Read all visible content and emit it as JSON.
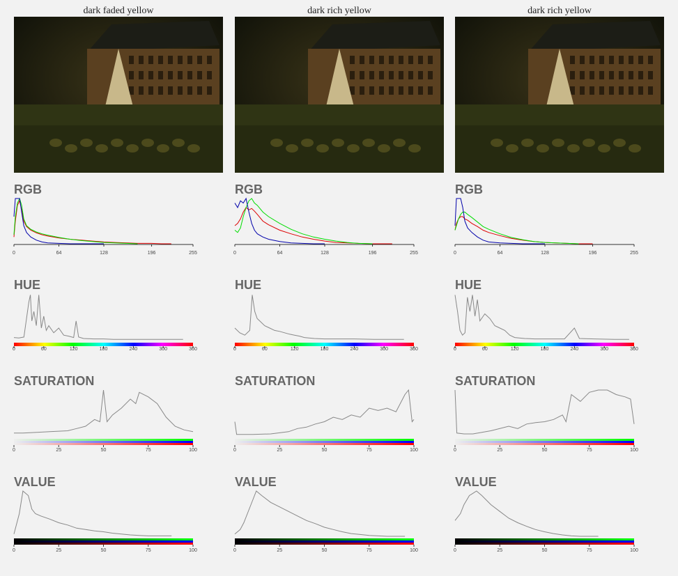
{
  "panels": [
    {
      "caption": "dark faded yellow"
    },
    {
      "caption": "dark rich yellow"
    },
    {
      "caption": "dark rich yellow"
    }
  ],
  "chart_data": [
    {
      "type": "line",
      "title": "RGB",
      "xlim": [
        0,
        255
      ],
      "xticks": [
        0,
        64,
        128,
        196,
        255
      ],
      "ylim": [
        0,
        100
      ],
      "x": [
        0,
        2,
        5,
        8,
        11,
        14,
        18,
        24,
        32,
        40,
        48,
        64,
        80,
        96,
        112,
        128,
        144,
        160,
        176,
        196,
        210,
        224
      ],
      "series": [
        {
          "color": "#dd0000",
          "values": [
            15,
            50,
            85,
            95,
            75,
            50,
            38,
            30,
            24,
            20,
            17,
            13,
            10,
            8,
            6,
            4,
            3,
            2,
            1,
            1,
            0,
            0
          ]
        },
        {
          "color": "#00dd00",
          "values": [
            20,
            60,
            90,
            100,
            85,
            55,
            40,
            32,
            26,
            22,
            19,
            14,
            10,
            7,
            5,
            3,
            2,
            1,
            0,
            null,
            null,
            null
          ]
        },
        {
          "color": "#0000aa",
          "values": [
            60,
            100,
            100,
            100,
            70,
            40,
            25,
            15,
            8,
            4,
            2,
            1,
            0,
            0,
            0,
            0,
            null,
            null,
            null,
            null,
            null,
            null
          ]
        }
      ]
    },
    {
      "type": "line",
      "title": "HUE",
      "xlim": [
        0,
        360
      ],
      "xticks": [
        0,
        60,
        120,
        180,
        240,
        300,
        360
      ],
      "ylim": [
        0,
        100
      ],
      "x": [
        0,
        10,
        20,
        30,
        33,
        36,
        40,
        45,
        50,
        55,
        60,
        65,
        70,
        80,
        90,
        100,
        110,
        120,
        125,
        130,
        140,
        160,
        180,
        200,
        240,
        300,
        340
      ],
      "series": [
        {
          "color": "#888888",
          "values": [
            5,
            4,
            6,
            80,
            95,
            40,
            60,
            30,
            95,
            25,
            50,
            20,
            30,
            15,
            25,
            10,
            8,
            5,
            40,
            6,
            3,
            2,
            2,
            1,
            1,
            1,
            1
          ]
        }
      ]
    },
    {
      "type": "line",
      "title": "SATURATION",
      "xlim": [
        0,
        100
      ],
      "xticks": [
        0,
        25,
        50,
        75,
        100
      ],
      "ylim": [
        0,
        100
      ],
      "x": [
        0,
        5,
        10,
        20,
        30,
        35,
        40,
        45,
        48,
        50,
        52,
        55,
        60,
        65,
        68,
        70,
        75,
        80,
        85,
        90,
        95,
        100
      ],
      "series": [
        {
          "color": "#888888",
          "values": [
            5,
            5,
            6,
            8,
            10,
            15,
            20,
            35,
            30,
            100,
            30,
            45,
            60,
            80,
            70,
            95,
            85,
            70,
            40,
            20,
            12,
            8
          ]
        }
      ]
    },
    {
      "type": "line",
      "title": "VALUE",
      "xlim": [
        0,
        100
      ],
      "xticks": [
        0,
        25,
        50,
        75,
        100
      ],
      "ylim": [
        0,
        100
      ],
      "x": [
        0,
        3,
        5,
        8,
        10,
        12,
        15,
        20,
        25,
        30,
        35,
        40,
        45,
        50,
        55,
        60,
        65,
        70,
        75,
        80,
        85,
        88
      ],
      "series": [
        {
          "color": "#888888",
          "values": [
            5,
            50,
            100,
            90,
            60,
            50,
            45,
            38,
            30,
            25,
            18,
            15,
            12,
            10,
            7,
            5,
            3,
            2,
            1,
            1,
            1,
            1
          ]
        }
      ]
    },
    {
      "type": "line",
      "title": "RGB",
      "xlim": [
        0,
        255
      ],
      "xticks": [
        0,
        64,
        128,
        196,
        255
      ],
      "ylim": [
        0,
        100
      ],
      "x": [
        0,
        4,
        8,
        12,
        16,
        20,
        24,
        28,
        32,
        40,
        48,
        64,
        80,
        96,
        112,
        128,
        144,
        160,
        176,
        196,
        224
      ],
      "series": [
        {
          "color": "#dd0000",
          "values": [
            40,
            45,
            55,
            70,
            80,
            75,
            78,
            72,
            65,
            50,
            42,
            30,
            22,
            15,
            10,
            6,
            3,
            2,
            1,
            0,
            0
          ]
        },
        {
          "color": "#00dd00",
          "values": [
            30,
            25,
            35,
            60,
            80,
            95,
            100,
            90,
            85,
            70,
            60,
            45,
            32,
            22,
            15,
            10,
            6,
            3,
            1,
            0,
            null
          ]
        },
        {
          "color": "#0000aa",
          "values": [
            90,
            80,
            95,
            90,
            100,
            70,
            45,
            30,
            22,
            15,
            10,
            5,
            2,
            1,
            0,
            0,
            null,
            null,
            null,
            null,
            null
          ]
        }
      ]
    },
    {
      "type": "line",
      "title": "HUE",
      "xlim": [
        0,
        360
      ],
      "xticks": [
        0,
        60,
        120,
        180,
        240,
        300,
        360
      ],
      "ylim": [
        0,
        100
      ],
      "x": [
        0,
        10,
        20,
        30,
        35,
        40,
        45,
        50,
        60,
        70,
        80,
        90,
        100,
        110,
        120,
        130,
        140,
        160,
        180,
        200,
        240,
        280,
        320,
        340
      ],
      "series": [
        {
          "color": "#888888",
          "values": [
            25,
            15,
            10,
            20,
            95,
            60,
            45,
            40,
            30,
            25,
            20,
            18,
            15,
            12,
            10,
            8,
            5,
            3,
            2,
            2,
            2,
            1,
            1,
            1
          ]
        }
      ]
    },
    {
      "type": "line",
      "title": "SATURATION",
      "xlim": [
        0,
        100
      ],
      "xticks": [
        0,
        25,
        50,
        75,
        100
      ],
      "ylim": [
        0,
        100
      ],
      "x": [
        0,
        1,
        5,
        10,
        20,
        30,
        35,
        40,
        45,
        50,
        55,
        60,
        65,
        70,
        75,
        80,
        85,
        90,
        95,
        97,
        99,
        100
      ],
      "series": [
        {
          "color": "#888888",
          "values": [
            30,
            2,
            2,
            2,
            3,
            8,
            15,
            18,
            25,
            30,
            40,
            35,
            45,
            40,
            60,
            55,
            60,
            52,
            90,
            100,
            30,
            35
          ]
        }
      ]
    },
    {
      "type": "line",
      "title": "VALUE",
      "xlim": [
        0,
        100
      ],
      "xticks": [
        0,
        25,
        50,
        75,
        100
      ],
      "ylim": [
        0,
        100
      ],
      "x": [
        0,
        3,
        5,
        8,
        10,
        12,
        15,
        20,
        25,
        30,
        35,
        40,
        45,
        50,
        55,
        60,
        65,
        70,
        75,
        80,
        85,
        95
      ],
      "series": [
        {
          "color": "#888888",
          "values": [
            5,
            15,
            30,
            60,
            80,
            100,
            90,
            75,
            65,
            55,
            45,
            35,
            28,
            20,
            15,
            10,
            6,
            4,
            2,
            1,
            0,
            0
          ]
        }
      ]
    },
    {
      "type": "line",
      "title": "RGB",
      "xlim": [
        0,
        255
      ],
      "xticks": [
        0,
        64,
        128,
        196,
        255
      ],
      "ylim": [
        0,
        100
      ],
      "x": [
        0,
        2,
        5,
        8,
        11,
        14,
        18,
        24,
        32,
        40,
        48,
        64,
        80,
        96,
        112,
        128,
        144,
        160,
        176,
        196,
        210,
        224
      ],
      "series": [
        {
          "color": "#dd0000",
          "values": [
            30,
            45,
            55,
            60,
            60,
            55,
            52,
            45,
            38,
            30,
            25,
            18,
            12,
            8,
            5,
            3,
            2,
            1,
            0,
            0,
            null,
            null
          ]
        },
        {
          "color": "#00dd00",
          "values": [
            30,
            40,
            55,
            65,
            70,
            70,
            65,
            58,
            48,
            38,
            32,
            22,
            14,
            9,
            5,
            3,
            2,
            1,
            0,
            null,
            null,
            null
          ]
        },
        {
          "color": "#0000aa",
          "values": [
            40,
            100,
            100,
            100,
            80,
            50,
            35,
            25,
            15,
            8,
            4,
            2,
            1,
            0,
            0,
            0,
            null,
            null,
            null,
            null,
            null,
            null
          ]
        }
      ]
    },
    {
      "type": "line",
      "title": "HUE",
      "xlim": [
        0,
        360
      ],
      "xticks": [
        0,
        60,
        120,
        180,
        240,
        300,
        360
      ],
      "ylim": [
        0,
        100
      ],
      "x": [
        0,
        5,
        10,
        15,
        20,
        25,
        30,
        35,
        40,
        45,
        50,
        60,
        70,
        80,
        90,
        100,
        110,
        120,
        140,
        160,
        200,
        220,
        240,
        250,
        280,
        320,
        350
      ],
      "series": [
        {
          "color": "#888888",
          "values": [
            95,
            60,
            20,
            10,
            15,
            90,
            60,
            95,
            50,
            85,
            40,
            55,
            45,
            30,
            25,
            20,
            10,
            5,
            3,
            2,
            2,
            2,
            25,
            3,
            2,
            1,
            1
          ]
        }
      ]
    },
    {
      "type": "line",
      "title": "SATURATION",
      "xlim": [
        0,
        100
      ],
      "xticks": [
        0,
        25,
        50,
        75,
        100
      ],
      "ylim": [
        0,
        100
      ],
      "x": [
        0,
        1,
        5,
        10,
        20,
        30,
        35,
        40,
        45,
        50,
        55,
        60,
        62,
        65,
        70,
        75,
        80,
        85,
        90,
        95,
        98,
        100
      ],
      "series": [
        {
          "color": "#888888",
          "values": [
            100,
            5,
            3,
            3,
            10,
            20,
            15,
            25,
            28,
            30,
            35,
            45,
            30,
            90,
            75,
            95,
            100,
            100,
            90,
            85,
            80,
            25
          ]
        }
      ]
    },
    {
      "type": "line",
      "title": "VALUE",
      "xlim": [
        0,
        100
      ],
      "xticks": [
        0,
        25,
        50,
        75,
        100
      ],
      "ylim": [
        0,
        100
      ],
      "x": [
        0,
        3,
        5,
        8,
        10,
        12,
        15,
        20,
        25,
        30,
        35,
        40,
        45,
        50,
        55,
        60,
        65,
        70,
        75,
        80,
        85,
        95
      ],
      "series": [
        {
          "color": "#888888",
          "values": [
            35,
            50,
            70,
            90,
            95,
            100,
            90,
            70,
            55,
            40,
            30,
            22,
            15,
            10,
            6,
            3,
            1,
            0,
            0,
            0,
            null,
            null
          ]
        }
      ]
    }
  ]
}
